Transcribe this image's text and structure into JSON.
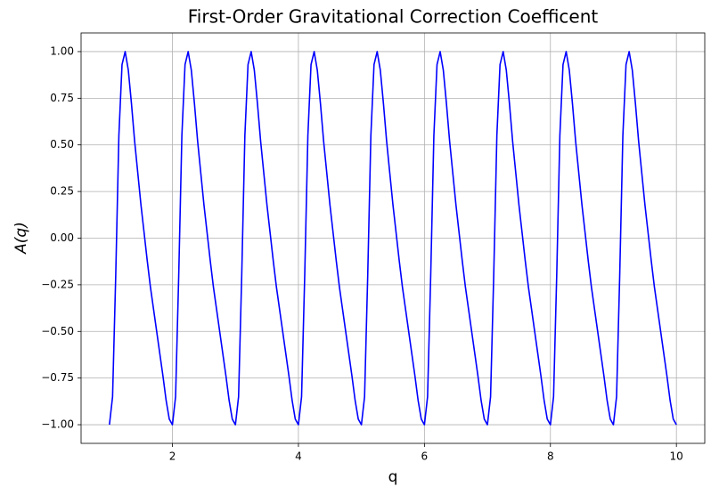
{
  "chart_data": {
    "type": "line",
    "title": "First-Order Gravitational Correction Coefficent",
    "x_label": "q",
    "y_label": "A(q)",
    "xlim": [
      0.55,
      10.45
    ],
    "ylim": [
      -1.1,
      1.1
    ],
    "xticks": [
      2,
      4,
      6,
      8,
      10
    ],
    "yticks": [
      {
        "value": 1,
        "label": "1.00"
      },
      {
        "value": 0.75,
        "label": "0.75"
      },
      {
        "value": 0.5,
        "label": "0.50"
      },
      {
        "value": 0.25,
        "label": "0.25"
      },
      {
        "value": 0,
        "label": "0.00"
      },
      {
        "value": -0.25,
        "label": "−0.25"
      },
      {
        "value": -0.5,
        "label": "−0.50"
      },
      {
        "value": -0.75,
        "label": "−0.75"
      },
      {
        "value": -1,
        "label": "−1.00"
      }
    ],
    "grid": true,
    "series": [
      {
        "color": "#0000ff",
        "x": [
          1.0,
          1.05,
          1.1,
          1.15,
          1.2,
          1.25,
          1.3,
          1.35,
          1.4,
          1.45,
          1.5,
          1.55,
          1.6,
          1.65,
          1.7,
          1.75,
          1.8,
          1.85,
          1.9,
          1.95,
          2.0,
          2.05,
          2.1,
          2.15,
          2.2,
          2.25,
          2.3,
          2.35,
          2.4,
          2.45,
          2.5,
          2.55,
          2.6,
          2.65,
          2.7,
          2.75,
          2.8,
          2.85,
          2.9,
          2.95,
          3.0,
          3.05,
          3.1,
          3.15,
          3.2,
          3.25,
          3.3,
          3.35,
          3.4,
          3.45,
          3.5,
          3.55,
          3.6,
          3.65,
          3.7,
          3.75,
          3.8,
          3.85,
          3.9,
          3.95,
          4.0,
          4.05,
          4.1,
          4.15,
          4.2,
          4.25,
          4.3,
          4.35,
          4.4,
          4.45,
          4.5,
          4.55,
          4.6,
          4.65,
          4.7,
          4.75,
          4.8,
          4.85,
          4.9,
          4.95,
          5.0,
          5.05,
          5.1,
          5.15,
          5.2,
          5.25,
          5.3,
          5.35,
          5.4,
          5.45,
          5.5,
          5.55,
          5.6,
          5.65,
          5.7,
          5.75,
          5.8,
          5.85,
          5.9,
          5.95,
          6.0,
          6.05,
          6.1,
          6.15,
          6.2,
          6.25,
          6.3,
          6.35,
          6.4,
          6.45,
          6.5,
          6.55,
          6.6,
          6.65,
          6.7,
          6.75,
          6.8,
          6.85,
          6.9,
          6.95,
          7.0,
          7.05,
          7.1,
          7.15,
          7.2,
          7.25,
          7.3,
          7.35,
          7.4,
          7.45,
          7.5,
          7.55,
          7.6,
          7.65,
          7.7,
          7.75,
          7.8,
          7.85,
          7.9,
          7.95,
          8.0,
          8.05,
          8.1,
          8.15,
          8.2,
          8.25,
          8.3,
          8.35,
          8.4,
          8.45,
          8.5,
          8.55,
          8.6,
          8.65,
          8.7,
          8.75,
          8.8,
          8.85,
          8.9,
          8.95,
          9.0,
          9.05,
          9.1,
          9.15,
          9.2,
          9.25,
          9.3,
          9.35,
          9.4,
          9.45,
          9.5,
          9.55,
          9.6,
          9.65,
          9.7,
          9.75,
          9.8,
          9.85,
          9.9,
          9.95,
          10.0
        ],
        "values": [
          -1,
          -0.85,
          -0.2,
          0.55,
          0.93,
          1,
          0.9,
          0.72,
          0.52,
          0.35,
          0.18,
          0.03,
          -0.12,
          -0.26,
          -0.38,
          -0.5,
          -0.62,
          -0.74,
          -0.87,
          -0.97,
          -1,
          -0.85,
          -0.2,
          0.55,
          0.93,
          1,
          0.9,
          0.72,
          0.52,
          0.35,
          0.18,
          0.03,
          -0.12,
          -0.26,
          -0.38,
          -0.5,
          -0.62,
          -0.74,
          -0.87,
          -0.97,
          -1,
          -0.85,
          -0.2,
          0.55,
          0.93,
          1,
          0.9,
          0.72,
          0.52,
          0.35,
          0.18,
          0.03,
          -0.12,
          -0.26,
          -0.38,
          -0.5,
          -0.62,
          -0.74,
          -0.87,
          -0.97,
          -1,
          -0.85,
          -0.2,
          0.55,
          0.93,
          1,
          0.9,
          0.72,
          0.52,
          0.35,
          0.18,
          0.03,
          -0.12,
          -0.26,
          -0.38,
          -0.5,
          -0.62,
          -0.74,
          -0.87,
          -0.97,
          -1,
          -0.85,
          -0.2,
          0.55,
          0.93,
          1,
          0.9,
          0.72,
          0.52,
          0.35,
          0.18,
          0.03,
          -0.12,
          -0.26,
          -0.38,
          -0.5,
          -0.62,
          -0.74,
          -0.87,
          -0.97,
          -1,
          -0.85,
          -0.2,
          0.55,
          0.93,
          1,
          0.9,
          0.72,
          0.52,
          0.35,
          0.18,
          0.03,
          -0.12,
          -0.26,
          -0.38,
          -0.5,
          -0.62,
          -0.74,
          -0.87,
          -0.97,
          -1,
          -0.85,
          -0.2,
          0.55,
          0.93,
          1,
          0.9,
          0.72,
          0.52,
          0.35,
          0.18,
          0.03,
          -0.12,
          -0.26,
          -0.38,
          -0.5,
          -0.62,
          -0.74,
          -0.87,
          -0.97,
          -1,
          -0.85,
          -0.2,
          0.55,
          0.93,
          1,
          0.9,
          0.72,
          0.52,
          0.35,
          0.18,
          0.03,
          -0.12,
          -0.26,
          -0.38,
          -0.5,
          -0.62,
          -0.74,
          -0.87,
          -0.97,
          -1,
          -0.85,
          -0.2,
          0.55,
          0.93,
          1,
          0.9,
          0.72,
          0.52,
          0.35,
          0.18,
          0.03,
          -0.12,
          -0.26,
          -0.38,
          -0.5,
          -0.62,
          -0.74,
          -0.87,
          -0.97,
          -1
        ]
      }
    ]
  }
}
